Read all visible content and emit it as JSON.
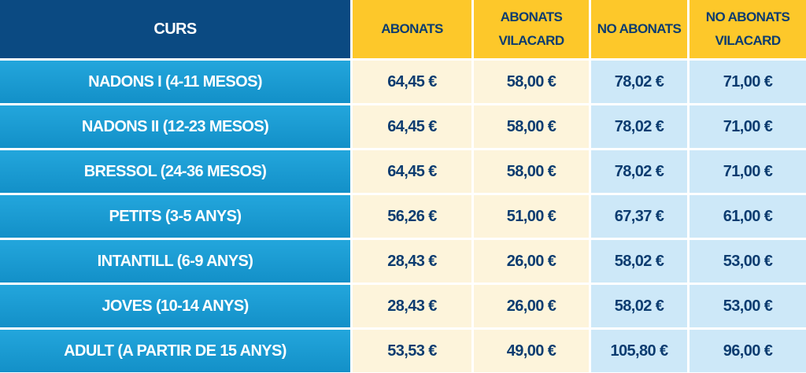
{
  "table": {
    "header": [
      "CURS",
      "ABONATS",
      "ABONATS VILACARD",
      "NO ABONATS",
      "NO ABONATS VILACARD"
    ],
    "rows": [
      [
        "NADONS I (4-11 MESOS)",
        "64,45 €",
        "58,00 €",
        "78,02 €",
        "71,00 €"
      ],
      [
        "NADONS II (12-23 MESOS)",
        "64,45 €",
        "58,00 €",
        "78,02 €",
        "71,00 €"
      ],
      [
        "BRESSOL (24-36 MESOS)",
        "64,45 €",
        "58,00 €",
        "78,02 €",
        "71,00 €"
      ],
      [
        "PETITS (3-5 ANYS)",
        "56,26 €",
        "51,00 €",
        "67,37 €",
        "61,00 €"
      ],
      [
        "INTANTILL (6-9 ANYS)",
        "28,43 €",
        "26,00 €",
        "58,02 €",
        "53,00 €"
      ],
      [
        "JOVES (10-14 ANYS)",
        "28,43 €",
        "26,00 €",
        "58,02 €",
        "53,00 €"
      ],
      [
        "ADULT (A PARTIR DE 15 ANYS)",
        "53,53 €",
        "49,00 €",
        "105,80 €",
        "96,00 €"
      ]
    ]
  }
}
